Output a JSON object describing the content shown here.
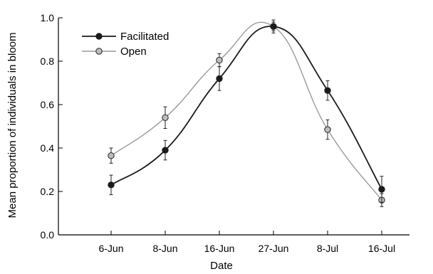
{
  "chart_data": {
    "type": "line",
    "title": "",
    "xlabel": "Date",
    "ylabel": "Mean proportion of individuals in bloom",
    "categories": [
      "6-Jun",
      "8-Jun",
      "16-Jun",
      "27-Jun",
      "8-Jul",
      "16-Jul"
    ],
    "ylim": [
      0.0,
      1.0
    ],
    "yticks": [
      "0.0",
      "0.2",
      "0.4",
      "0.6",
      "0.8",
      "1.0"
    ],
    "grid": false,
    "legend_position": "top-left",
    "series": [
      {
        "name": "Facilitated",
        "color": "#1a1a1a",
        "marker_fill": "#1a1a1a",
        "values": [
          0.23,
          0.39,
          0.72,
          0.96,
          0.665,
          0.21
        ],
        "errors": [
          0.045,
          0.045,
          0.055,
          0.02,
          0.045,
          0.06
        ]
      },
      {
        "name": "Open",
        "color": "#9a9a9a",
        "marker_fill": "#bdbdbd",
        "values": [
          0.365,
          0.54,
          0.805,
          0.96,
          0.485,
          0.16
        ],
        "errors": [
          0.035,
          0.05,
          0.03,
          0.03,
          0.045,
          0.03
        ]
      }
    ]
  }
}
